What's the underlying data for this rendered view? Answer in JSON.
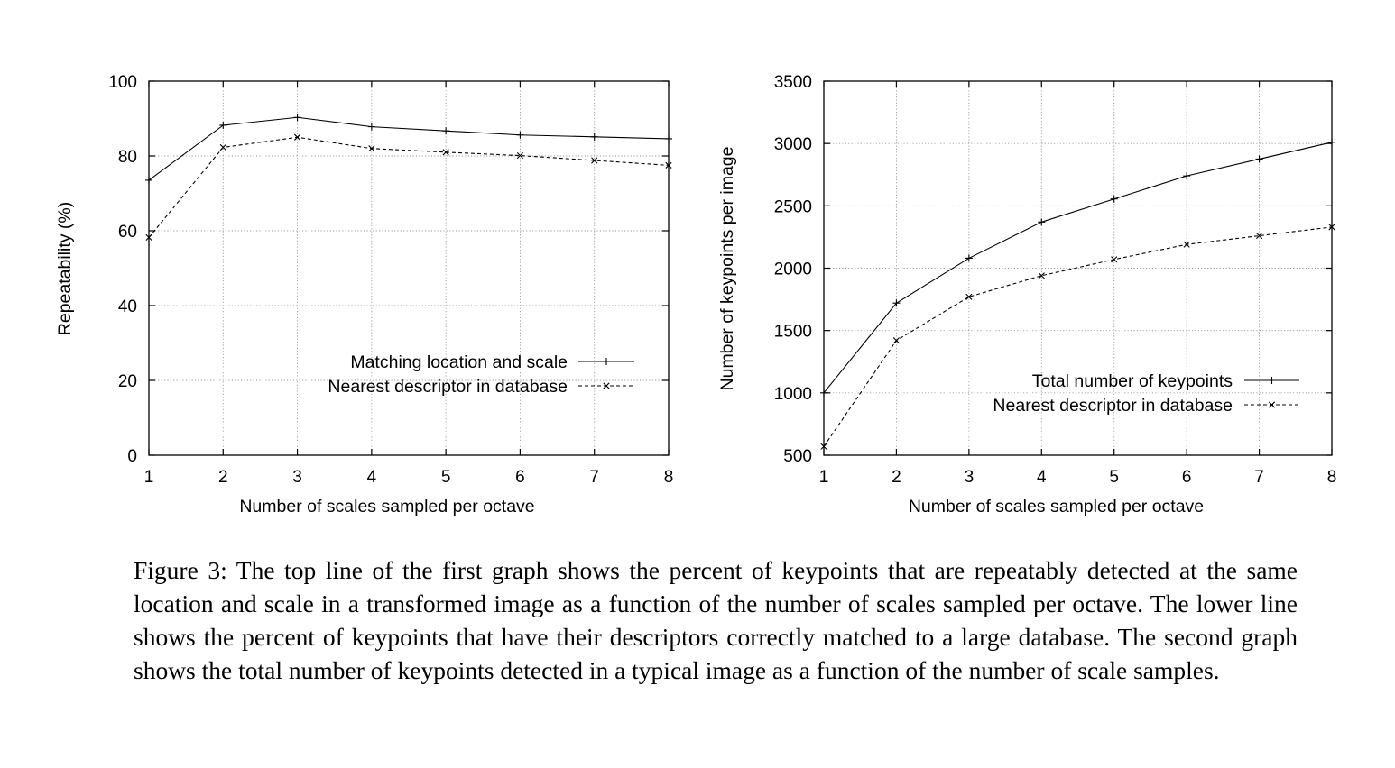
{
  "chart_data": [
    {
      "type": "line",
      "title": "",
      "xlabel": "Number of scales sampled per octave",
      "ylabel": "Repeatability (%)",
      "xlim": [
        1,
        8
      ],
      "ylim": [
        0,
        100
      ],
      "xticks": [
        1,
        2,
        3,
        4,
        5,
        6,
        7,
        8
      ],
      "yticks": [
        0,
        20,
        40,
        60,
        80,
        100
      ],
      "grid": true,
      "legend_position": "center-right",
      "x": [
        1,
        2,
        3,
        4,
        5,
        6,
        7,
        8
      ],
      "series": [
        {
          "name": "Matching location and scale",
          "style": "solid",
          "marker": "+",
          "values": [
            73.5,
            88.2,
            90.3,
            87.8,
            86.7,
            85.6,
            85.1,
            84.6
          ]
        },
        {
          "name": "Nearest descriptor in database",
          "style": "dashed",
          "marker": "x",
          "values": [
            58.2,
            82.3,
            85.0,
            82.0,
            81.0,
            80.1,
            78.8,
            77.5
          ]
        }
      ]
    },
    {
      "type": "line",
      "title": "",
      "xlabel": "Number of scales sampled per octave",
      "ylabel": "Number of keypoints per image",
      "xlim": [
        1,
        8
      ],
      "ylim": [
        500,
        3500
      ],
      "xticks": [
        1,
        2,
        3,
        4,
        5,
        6,
        7,
        8
      ],
      "yticks": [
        500,
        1000,
        1500,
        2000,
        2500,
        3000,
        3500
      ],
      "grid": true,
      "legend_position": "bottom-right",
      "x": [
        1,
        2,
        3,
        4,
        5,
        6,
        7,
        8
      ],
      "series": [
        {
          "name": "Total number of keypoints",
          "style": "solid",
          "marker": "+",
          "values": [
            1000,
            1720,
            2080,
            2370,
            2555,
            2740,
            2875,
            3010
          ]
        },
        {
          "name": "Nearest descriptor in database",
          "style": "dashed",
          "marker": "x",
          "values": [
            570,
            1420,
            1770,
            1940,
            2070,
            2190,
            2260,
            2330
          ]
        }
      ]
    }
  ],
  "caption": "Figure 3: The top line of the first graph shows the percent of keypoints that are repeatably detected at the same location and scale in a transformed image as a function of the number of scales sampled per octave. The lower line shows the percent of keypoints that have their descriptors correctly matched to a large database. The second graph shows the total number of keypoints detected in a typical image as a function of the number of scale samples."
}
